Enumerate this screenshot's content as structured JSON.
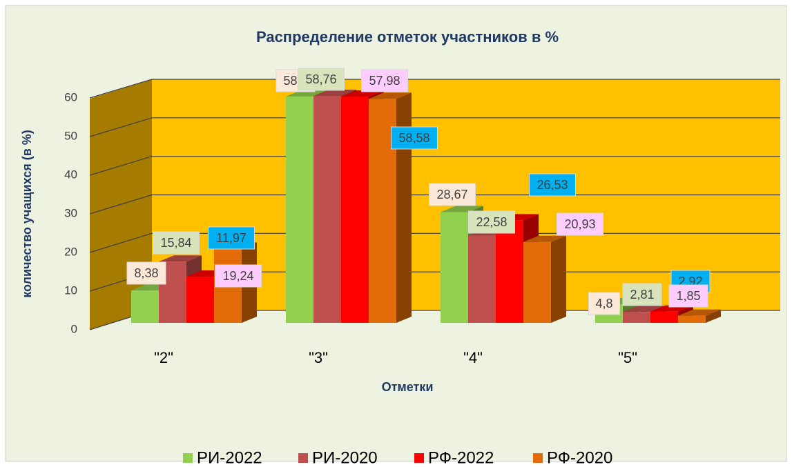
{
  "chart_data": {
    "type": "bar3d",
    "title": "Распределение отметок участников в %",
    "x_label": "Отметки",
    "y_label": "количество учащихся (в %)",
    "categories": [
      "\"2\"",
      "\"3\"",
      "\"4\"",
      "\"5\""
    ],
    "series": [
      {
        "name": "РИ-2022",
        "color": "#92d050",
        "label_color": "#fde9d9",
        "values": [
          8.38,
          58.6,
          28.67,
          4.8
        ],
        "value_labels": [
          "8,38",
          "58,6",
          "28,67",
          "4,8"
        ]
      },
      {
        "name": "РИ-2020",
        "color": "#c0504d",
        "label_color": "#d7e4bc",
        "values": [
          15.84,
          58.76,
          22.58,
          2.81
        ],
        "value_labels": [
          "15,84",
          "58,76",
          "22,58",
          "2,81"
        ]
      },
      {
        "name": "РФ-2022",
        "color": "#ff0000",
        "label_color": "#00b0f0",
        "values": [
          11.97,
          58.58,
          26.53,
          2.92
        ],
        "value_labels": [
          "11,97",
          "58,58",
          "26,53",
          "2,92"
        ]
      },
      {
        "name": "РФ-2020",
        "color": "#e36c09",
        "label_color": "#ffccff",
        "values": [
          19.24,
          57.98,
          20.93,
          1.85
        ],
        "value_labels": [
          "19,24",
          "57,98",
          "20,93",
          "1,85"
        ]
      }
    ],
    "ylim": [
      0,
      60
    ],
    "yticks": [
      0,
      10,
      20,
      30,
      40,
      50,
      60
    ],
    "grid": true,
    "legend": "bottom"
  }
}
